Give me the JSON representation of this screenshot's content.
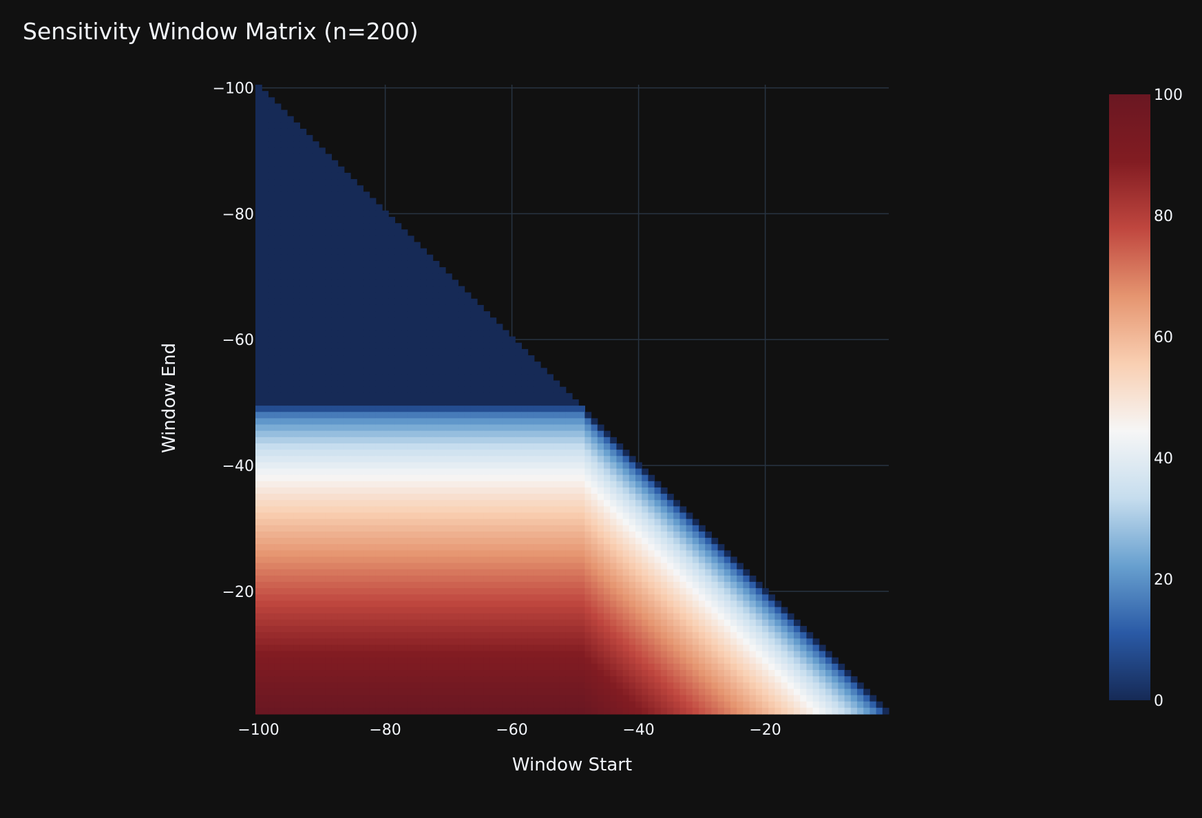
{
  "chart_data": {
    "type": "heatmap",
    "title": "Sensitivity Window Matrix (n=200)",
    "xlabel": "Window Start",
    "ylabel": "Window End",
    "x_ticks": [
      "−100",
      "−80",
      "−60",
      "−40",
      "−20"
    ],
    "y_ticks": [
      "−100",
      "−80",
      "−60",
      "−40",
      "−20"
    ],
    "colorbar_ticks": [
      "0",
      "20",
      "40",
      "60",
      "80",
      "100"
    ],
    "xlim": [
      -100,
      -1
    ],
    "ylim": [
      -100,
      -1
    ],
    "zlim": [
      0,
      100
    ],
    "grid": true,
    "colorscale": "RdBu (reversed): 0 dark blue, 50 white, 100 dark red",
    "colorscale_stops": [
      "#162a56",
      "#2a5aa6",
      "#68a0cf",
      "#c6ddee",
      "#f6f6f6",
      "#f9cfb2",
      "#e59570",
      "#c0473f",
      "#821c22",
      "#6a1722"
    ],
    "cells_shown": "window start <= window end; cells above the diagonal are empty",
    "z_rule": {
      "description": "z ≈ 0 where both start and end are before about −49; otherwise z rises with window end toward 100 at end = −1 and with the width of the window after −49",
      "breakpoint": -49,
      "samples": [
        {
          "start": -100,
          "end": -60,
          "value": 0
        },
        {
          "start": -100,
          "end": -45,
          "value": 20
        },
        {
          "start": -100,
          "end": -40,
          "value": 45
        },
        {
          "start": -100,
          "end": -35,
          "value": 65
        },
        {
          "start": -100,
          "end": -25,
          "value": 78
        },
        {
          "start": -100,
          "end": -15,
          "value": 88
        },
        {
          "start": -100,
          "end": -1,
          "value": 97
        },
        {
          "start": -40,
          "end": -25,
          "value": 55
        },
        {
          "start": -40,
          "end": -1,
          "value": 90
        },
        {
          "start": -20,
          "end": -1,
          "value": 60
        },
        {
          "start": -10,
          "end": -1,
          "value": 25
        }
      ]
    }
  }
}
